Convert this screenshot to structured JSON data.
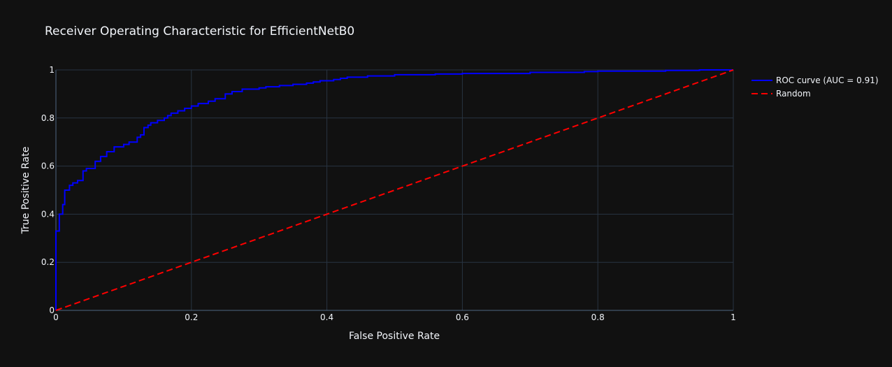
{
  "chart_data": {
    "type": "line",
    "title": "Receiver Operating Characteristic for EfficientNetB0",
    "xlabel": "False Positive Rate",
    "ylabel": "True Positive Rate",
    "xlim": [
      0,
      1
    ],
    "ylim": [
      0,
      1
    ],
    "x_ticks": [
      "0",
      "0.2",
      "0.4",
      "0.6",
      "0.8",
      "1"
    ],
    "y_ticks": [
      "0",
      "0.2",
      "0.4",
      "0.6",
      "0.8",
      "1"
    ],
    "grid": true,
    "legend_position": "top-right, outside plot",
    "background_color": "#111111",
    "series": [
      {
        "name": "ROC curve (AUC = 0.91)",
        "color": "#0000ff",
        "dash": "solid",
        "line_shape": "step",
        "x": [
          0,
          0,
          0.005,
          0.005,
          0.01,
          0.01,
          0.013,
          0.013,
          0.02,
          0.02,
          0.025,
          0.025,
          0.032,
          0.032,
          0.04,
          0.04,
          0.045,
          0.045,
          0.058,
          0.058,
          0.066,
          0.066,
          0.075,
          0.075,
          0.086,
          0.086,
          0.1,
          0.1,
          0.108,
          0.108,
          0.12,
          0.12,
          0.125,
          0.125,
          0.13,
          0.13,
          0.136,
          0.136,
          0.14,
          0.14,
          0.15,
          0.15,
          0.16,
          0.16,
          0.165,
          0.165,
          0.17,
          0.17,
          0.18,
          0.18,
          0.19,
          0.19,
          0.2,
          0.2,
          0.21,
          0.21,
          0.225,
          0.225,
          0.235,
          0.235,
          0.25,
          0.25,
          0.26,
          0.26,
          0.275,
          0.275,
          0.3,
          0.3,
          0.31,
          0.31,
          0.33,
          0.33,
          0.35,
          0.35,
          0.37,
          0.37,
          0.38,
          0.38,
          0.39,
          0.39,
          0.41,
          0.41,
          0.42,
          0.42,
          0.43,
          0.43,
          0.46,
          0.46,
          0.5,
          0.5,
          0.56,
          0.56,
          0.6,
          0.6,
          0.7,
          0.7,
          0.78,
          0.78,
          0.8,
          0.8,
          0.9,
          0.9,
          0.95,
          0.95,
          1
        ],
        "y": [
          0,
          0.33,
          0.33,
          0.4,
          0.4,
          0.44,
          0.44,
          0.5,
          0.5,
          0.52,
          0.52,
          0.53,
          0.53,
          0.54,
          0.54,
          0.58,
          0.58,
          0.59,
          0.59,
          0.62,
          0.62,
          0.64,
          0.64,
          0.66,
          0.66,
          0.68,
          0.68,
          0.69,
          0.69,
          0.7,
          0.7,
          0.72,
          0.72,
          0.73,
          0.73,
          0.76,
          0.76,
          0.77,
          0.77,
          0.78,
          0.78,
          0.79,
          0.79,
          0.8,
          0.8,
          0.81,
          0.81,
          0.82,
          0.82,
          0.83,
          0.83,
          0.84,
          0.84,
          0.85,
          0.85,
          0.86,
          0.86,
          0.87,
          0.87,
          0.88,
          0.88,
          0.9,
          0.9,
          0.91,
          0.91,
          0.92,
          0.92,
          0.925,
          0.925,
          0.93,
          0.93,
          0.935,
          0.935,
          0.94,
          0.94,
          0.945,
          0.945,
          0.95,
          0.95,
          0.955,
          0.955,
          0.96,
          0.96,
          0.965,
          0.965,
          0.97,
          0.97,
          0.975,
          0.975,
          0.98,
          0.98,
          0.983,
          0.983,
          0.985,
          0.985,
          0.99,
          0.99,
          0.993,
          0.993,
          0.995,
          0.995,
          0.998,
          0.998,
          1,
          1
        ]
      },
      {
        "name": "Random",
        "color": "#ff0000",
        "dash": "dash",
        "line_shape": "linear",
        "x": [
          0,
          1
        ],
        "y": [
          0,
          1
        ]
      }
    ]
  }
}
